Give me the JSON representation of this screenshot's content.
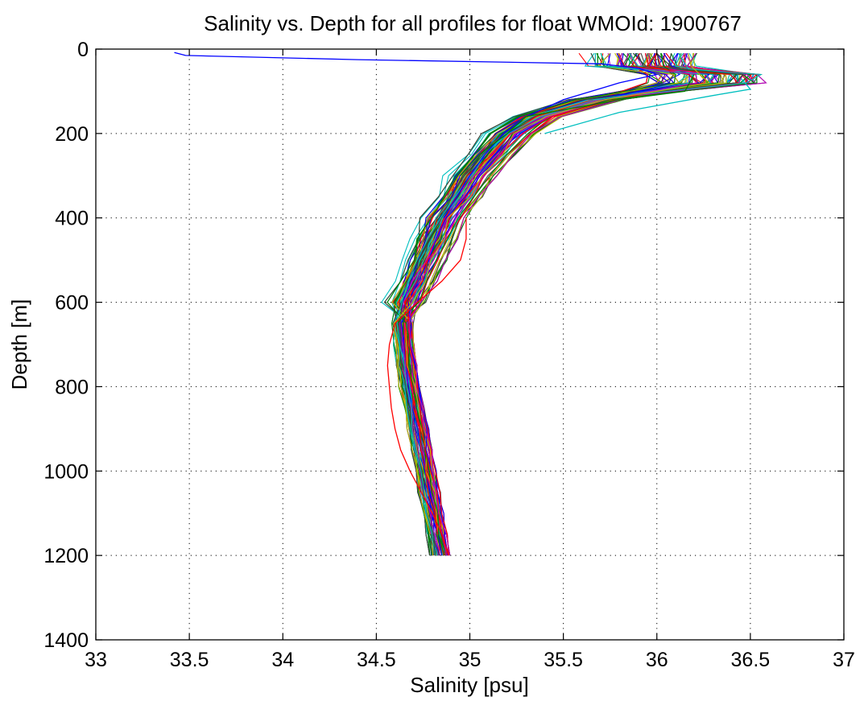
{
  "chart_data": {
    "type": "line",
    "title": "Salinity vs. Depth for all profiles for float WMOId: 1900767",
    "xlabel": "Salinity [psu]",
    "ylabel": "Depth [m]",
    "xlim": [
      33,
      37
    ],
    "ylim": [
      0,
      1400
    ],
    "y_reversed": true,
    "grid": true,
    "grid_style": "dotted",
    "x_ticks": [
      "33",
      "33.5",
      "34",
      "34.5",
      "35",
      "35.5",
      "36",
      "36.5",
      "37"
    ],
    "y_ticks": [
      "0",
      "200",
      "400",
      "600",
      "800",
      "1000",
      "1200",
      "1400"
    ],
    "profile_count_estimate": 160,
    "series_colors": [
      "#0000ff",
      "#008000",
      "#ff0000",
      "#00bfbf",
      "#bf00bf",
      "#bfbf00",
      "#404040"
    ],
    "typical_profile": {
      "depth": [
        10,
        40,
        60,
        80,
        120,
        160,
        200,
        250,
        300,
        350,
        400,
        450,
        500,
        550,
        600,
        650,
        700,
        750,
        800,
        850,
        900,
        950,
        1000,
        1050,
        1100,
        1150,
        1200,
        1240
      ],
      "salinity": [
        35.95,
        35.95,
        36.15,
        36.05,
        35.65,
        35.35,
        35.2,
        35.1,
        35.0,
        34.93,
        34.85,
        34.8,
        34.75,
        34.7,
        34.65,
        34.64,
        34.65,
        34.66,
        34.68,
        34.7,
        34.72,
        34.74,
        34.76,
        34.78,
        34.8,
        34.82,
        34.84,
        34.86
      ]
    },
    "outlier_profiles": [
      {
        "color": "#0000ff",
        "depth": [
          8,
          15,
          25,
          35,
          45,
          60,
          80,
          120,
          160,
          200,
          250,
          300,
          350,
          400
        ],
        "salinity": [
          33.42,
          33.48,
          34.4,
          35.7,
          35.9,
          36.0,
          35.8,
          35.5,
          35.3,
          35.18,
          35.08,
          35.0,
          34.93,
          34.86
        ]
      },
      {
        "color": "#ff0000",
        "depth": [
          400,
          450,
          500,
          550,
          600,
          650,
          700,
          750,
          800,
          850,
          900,
          950,
          1000,
          1050,
          1100,
          1150,
          1190
        ],
        "salinity": [
          34.98,
          34.98,
          34.95,
          34.85,
          34.72,
          34.6,
          34.57,
          34.56,
          34.57,
          34.58,
          34.6,
          34.63,
          34.68,
          34.74,
          34.8,
          34.85,
          34.88
        ]
      },
      {
        "color": "#008000",
        "depth": [
          60,
          100,
          120,
          160,
          200,
          250,
          300
        ],
        "salinity": [
          36.2,
          36.15,
          35.8,
          35.3,
          35.2,
          35.05,
          34.95
        ]
      },
      {
        "color": "#00bfbf",
        "depth": [
          70,
          95,
          110,
          150,
          200
        ],
        "salinity": [
          36.45,
          36.5,
          36.3,
          35.8,
          35.4
        ]
      }
    ]
  }
}
